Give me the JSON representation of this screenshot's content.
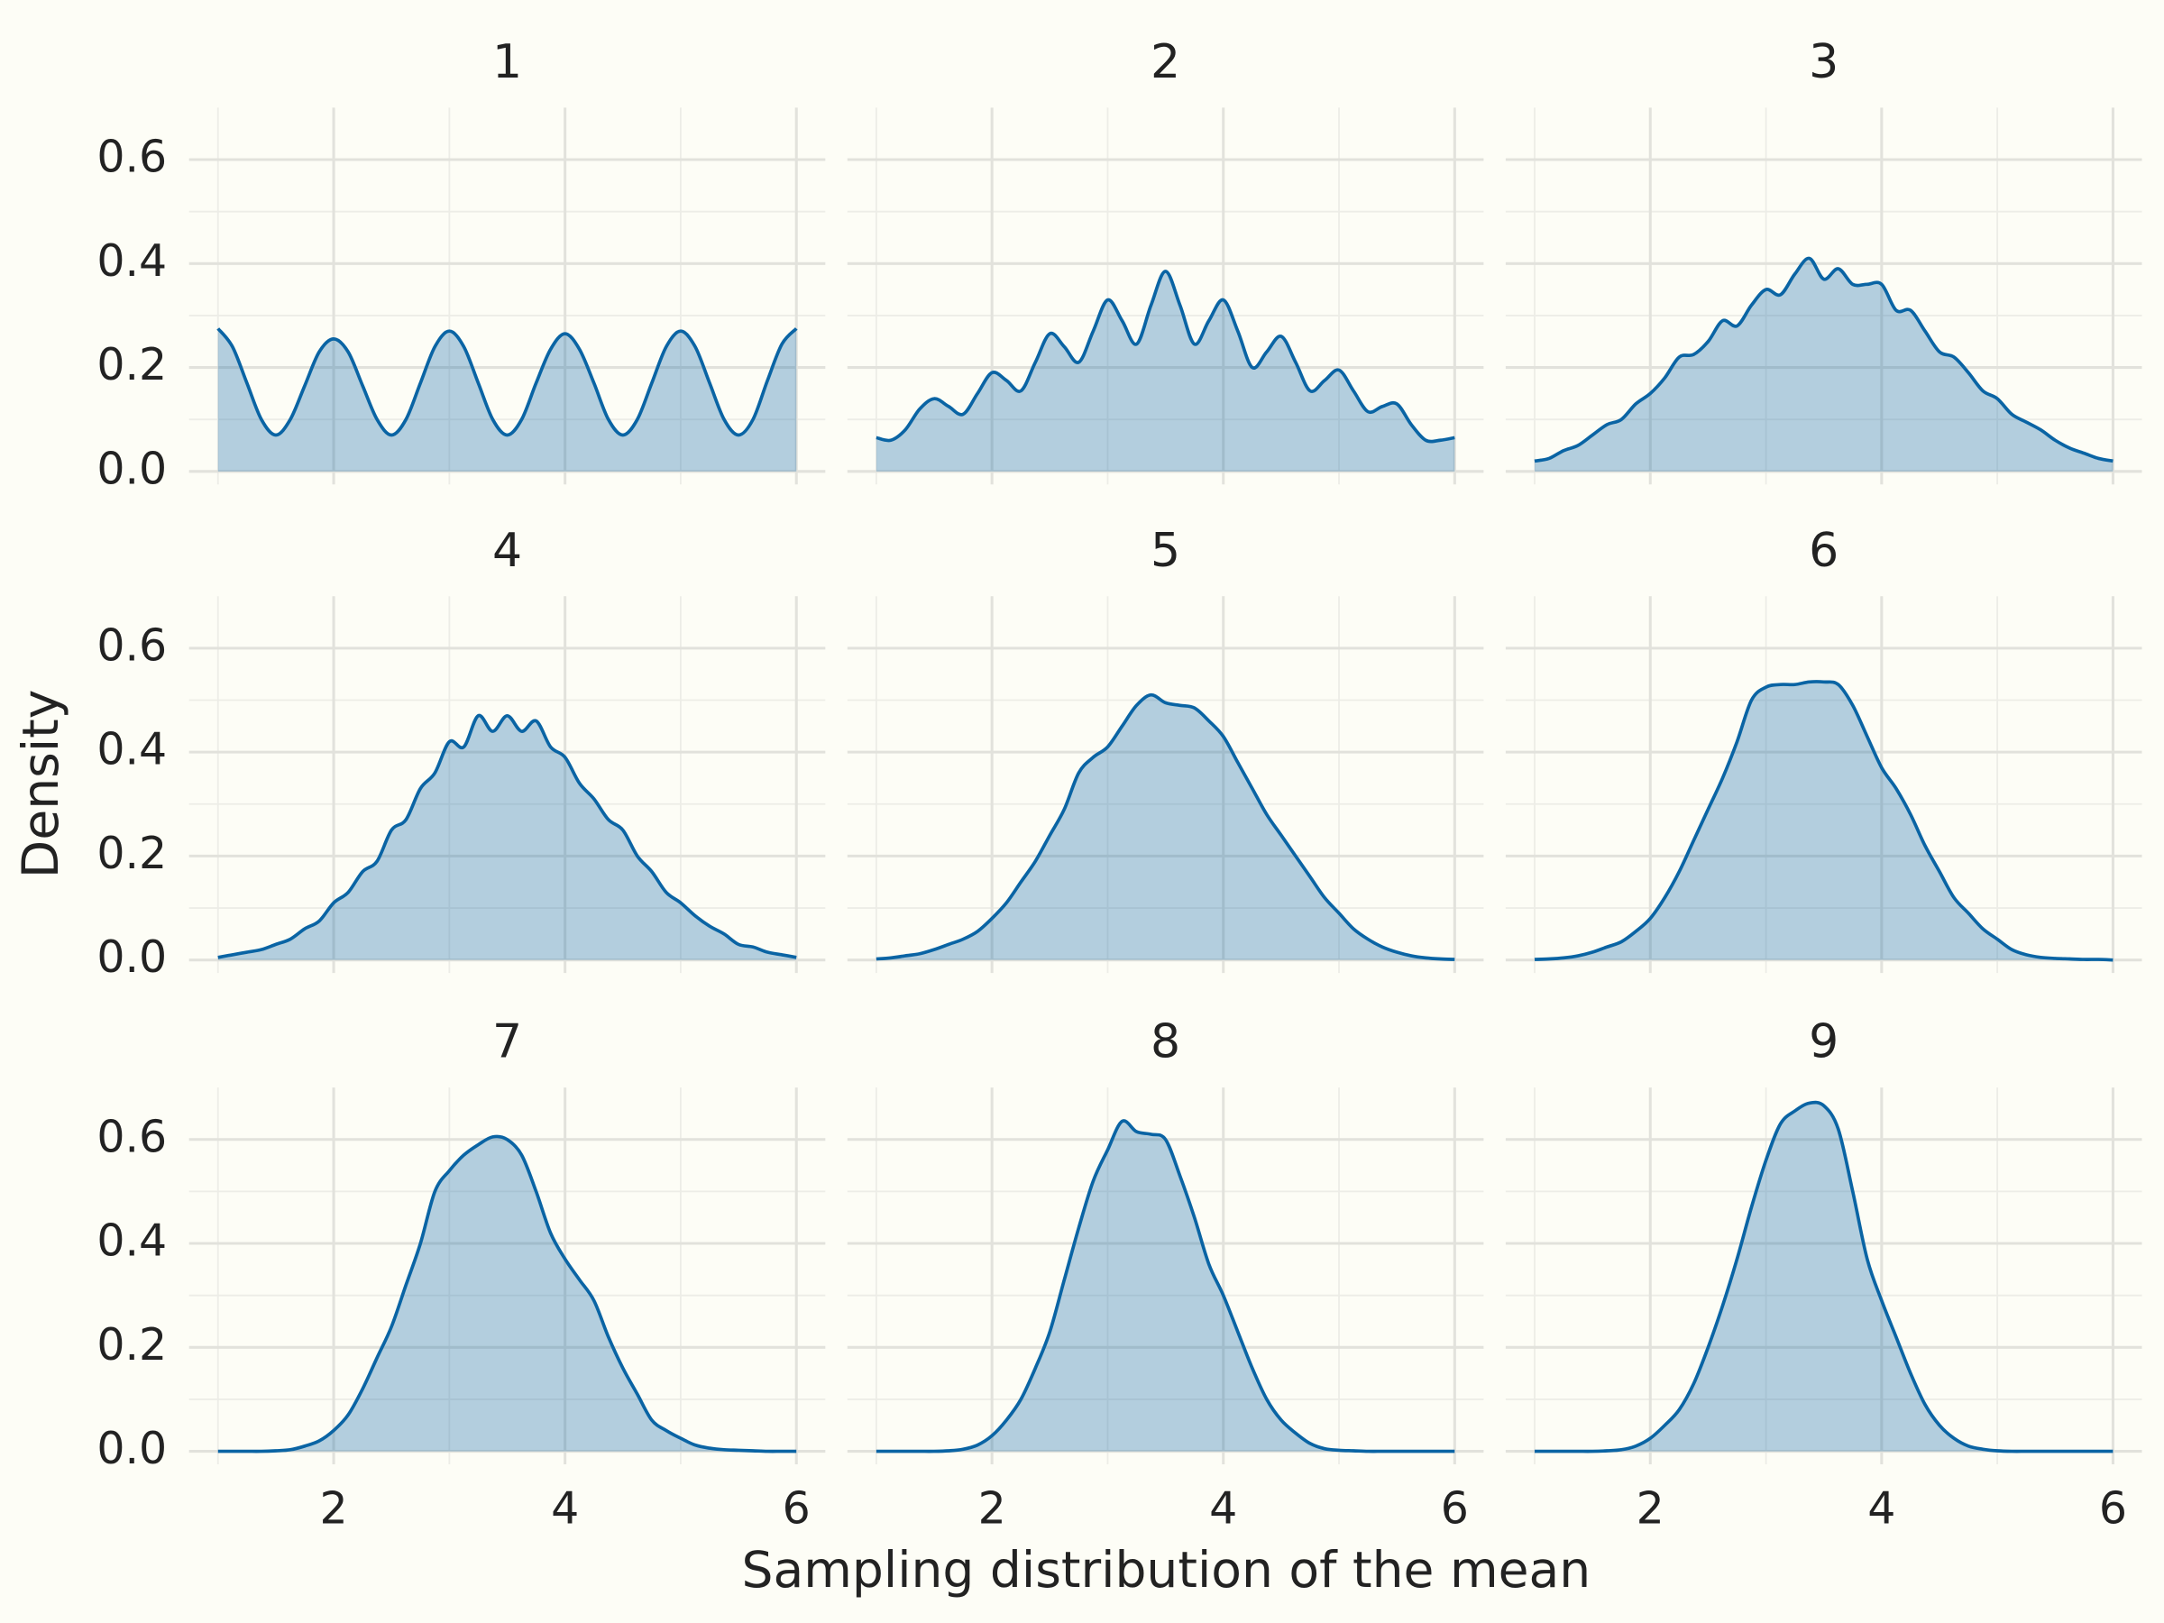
{
  "chart_data": {
    "type": "area",
    "xlabel": "Sampling distribution of the mean",
    "ylabel": "Density",
    "color": "#0a64a4",
    "x": [
      1,
      1.125,
      1.25,
      1.375,
      1.5,
      1.625,
      1.75,
      1.875,
      2,
      2.125,
      2.25,
      2.375,
      2.5,
      2.625,
      2.75,
      2.875,
      3,
      3.125,
      3.25,
      3.375,
      3.5,
      3.625,
      3.75,
      3.875,
      4,
      4.125,
      4.25,
      4.375,
      4.5,
      4.625,
      4.75,
      4.875,
      5,
      5.125,
      5.25,
      5.375,
      5.5,
      5.625,
      5.75,
      5.875,
      6
    ],
    "series": [
      {
        "name": "1",
        "values": [
          0.275,
          0.24,
          0.17,
          0.1,
          0.07,
          0.1,
          0.165,
          0.23,
          0.255,
          0.23,
          0.165,
          0.1,
          0.07,
          0.1,
          0.17,
          0.24,
          0.27,
          0.24,
          0.17,
          0.1,
          0.07,
          0.1,
          0.17,
          0.235,
          0.265,
          0.235,
          0.17,
          0.1,
          0.07,
          0.1,
          0.17,
          0.24,
          0.27,
          0.24,
          0.17,
          0.1,
          0.07,
          0.1,
          0.175,
          0.245,
          0.275
        ]
      },
      {
        "name": "2",
        "values": [
          0.065,
          0.06,
          0.08,
          0.12,
          0.14,
          0.125,
          0.11,
          0.15,
          0.19,
          0.175,
          0.155,
          0.21,
          0.265,
          0.24,
          0.21,
          0.27,
          0.33,
          0.29,
          0.245,
          0.32,
          0.385,
          0.32,
          0.245,
          0.29,
          0.33,
          0.27,
          0.2,
          0.23,
          0.26,
          0.21,
          0.155,
          0.175,
          0.195,
          0.155,
          0.115,
          0.125,
          0.13,
          0.09,
          0.06,
          0.06,
          0.065
        ]
      },
      {
        "name": "3",
        "values": [
          0.02,
          0.025,
          0.04,
          0.05,
          0.07,
          0.09,
          0.1,
          0.13,
          0.15,
          0.18,
          0.22,
          0.225,
          0.25,
          0.29,
          0.28,
          0.32,
          0.35,
          0.34,
          0.38,
          0.41,
          0.37,
          0.39,
          0.36,
          0.36,
          0.36,
          0.31,
          0.31,
          0.27,
          0.23,
          0.22,
          0.19,
          0.155,
          0.14,
          0.11,
          0.095,
          0.08,
          0.06,
          0.045,
          0.035,
          0.025,
          0.02
        ]
      },
      {
        "name": "4",
        "values": [
          0.005,
          0.01,
          0.015,
          0.02,
          0.03,
          0.04,
          0.06,
          0.075,
          0.11,
          0.13,
          0.17,
          0.19,
          0.25,
          0.27,
          0.33,
          0.36,
          0.42,
          0.41,
          0.47,
          0.44,
          0.47,
          0.44,
          0.46,
          0.41,
          0.39,
          0.34,
          0.31,
          0.27,
          0.25,
          0.2,
          0.17,
          0.13,
          0.11,
          0.085,
          0.065,
          0.05,
          0.03,
          0.025,
          0.015,
          0.01,
          0.005
        ]
      },
      {
        "name": "5",
        "values": [
          0.002,
          0.004,
          0.008,
          0.012,
          0.02,
          0.03,
          0.04,
          0.055,
          0.08,
          0.11,
          0.15,
          0.19,
          0.24,
          0.29,
          0.36,
          0.39,
          0.41,
          0.45,
          0.49,
          0.51,
          0.495,
          0.49,
          0.485,
          0.46,
          0.43,
          0.38,
          0.33,
          0.28,
          0.24,
          0.2,
          0.16,
          0.12,
          0.09,
          0.06,
          0.04,
          0.025,
          0.015,
          0.008,
          0.004,
          0.002,
          0.001
        ]
      },
      {
        "name": "6",
        "values": [
          0.001,
          0.002,
          0.004,
          0.008,
          0.015,
          0.025,
          0.035,
          0.055,
          0.08,
          0.12,
          0.17,
          0.23,
          0.29,
          0.35,
          0.42,
          0.5,
          0.525,
          0.53,
          0.53,
          0.535,
          0.535,
          0.53,
          0.49,
          0.43,
          0.37,
          0.33,
          0.28,
          0.22,
          0.17,
          0.12,
          0.09,
          0.06,
          0.04,
          0.02,
          0.01,
          0.005,
          0.003,
          0.002,
          0.001,
          0.001,
          0
        ]
      },
      {
        "name": "7",
        "values": [
          0,
          0,
          0,
          0,
          0.001,
          0.003,
          0.01,
          0.02,
          0.04,
          0.07,
          0.12,
          0.18,
          0.24,
          0.32,
          0.4,
          0.5,
          0.54,
          0.57,
          0.59,
          0.605,
          0.6,
          0.57,
          0.5,
          0.42,
          0.37,
          0.33,
          0.29,
          0.22,
          0.16,
          0.11,
          0.06,
          0.04,
          0.025,
          0.012,
          0.006,
          0.003,
          0.002,
          0.001,
          0,
          0,
          0
        ]
      },
      {
        "name": "8",
        "values": [
          0,
          0,
          0,
          0,
          0,
          0.001,
          0.004,
          0.012,
          0.03,
          0.06,
          0.1,
          0.16,
          0.23,
          0.33,
          0.43,
          0.52,
          0.58,
          0.635,
          0.615,
          0.61,
          0.6,
          0.53,
          0.45,
          0.36,
          0.3,
          0.23,
          0.16,
          0.1,
          0.06,
          0.035,
          0.015,
          0.005,
          0.002,
          0.001,
          0,
          0,
          0,
          0,
          0,
          0,
          0
        ]
      },
      {
        "name": "9",
        "values": [
          0,
          0,
          0,
          0,
          0,
          0.001,
          0.003,
          0.01,
          0.025,
          0.05,
          0.08,
          0.13,
          0.2,
          0.28,
          0.37,
          0.47,
          0.56,
          0.63,
          0.655,
          0.67,
          0.665,
          0.62,
          0.5,
          0.37,
          0.29,
          0.22,
          0.15,
          0.09,
          0.05,
          0.025,
          0.01,
          0.004,
          0.001,
          0,
          0,
          0,
          0,
          0,
          0,
          0,
          0
        ]
      }
    ],
    "xlim": [
      0.75,
      6.25
    ],
    "xticks": [
      2,
      4,
      6
    ],
    "xminorticks": [
      1,
      3,
      5
    ],
    "ylim": [
      -0.025,
      0.7
    ],
    "yticks": [
      {
        "value": 0,
        "label": "0.0"
      },
      0.2,
      0.4,
      0.6
    ],
    "yminorticks": [
      0.1,
      0.3,
      0.5
    ],
    "grid": true
  }
}
